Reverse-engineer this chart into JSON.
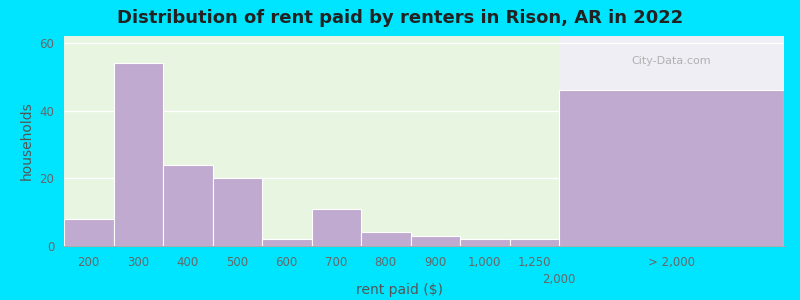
{
  "title": "Distribution of rent paid by renters in Rison, AR in 2022",
  "xlabel": "rent paid ($)",
  "ylabel": "households",
  "bar_labels": [
    "200",
    "300",
    "400",
    "500",
    "600",
    "700",
    "800",
    "900",
    "1,000",
    "1,250"
  ],
  "bar_values": [
    8,
    54,
    24,
    20,
    2,
    11,
    4,
    3,
    2,
    2
  ],
  "bar_color": "#c0aad0",
  "bg_color_left": "#e8f5e0",
  "bg_color_right": "#eeeef4",
  "ylim": [
    0,
    62
  ],
  "yticks": [
    0,
    20,
    40,
    60
  ],
  "extra_bar_label": "> 2,000",
  "extra_bar_value": 46,
  "extra_tick_label": "2,000",
  "outer_bg": "#00e5ff",
  "title_fontsize": 13,
  "axis_label_fontsize": 10,
  "tick_fontsize": 8.5
}
